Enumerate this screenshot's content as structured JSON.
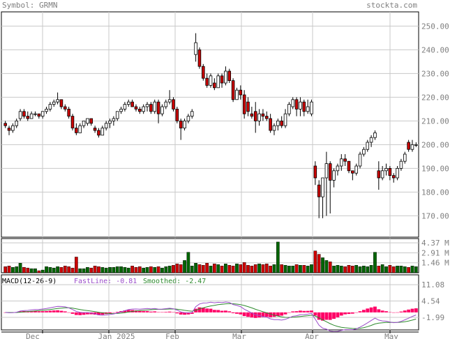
{
  "header": {
    "symbol": "Symbol: GRMN",
    "brand": "stockta.com"
  },
  "colors": {
    "grid": "#c8c8c8",
    "frame": "#000000",
    "text": "#808080",
    "up_candle": "#ffffff",
    "down_candle": "#cc0000",
    "vol_up": "#006400",
    "vol_down": "#cc0000",
    "macd_fast": "#9b4dca",
    "macd_smooth": "#2e8b2e",
    "hist": "#ff0066"
  },
  "chart_data": [
    {
      "type": "candlestick",
      "name": "price",
      "x_labels": [
        "Dec",
        "Jan 2025",
        "Feb",
        "Mar",
        "Apr",
        "May"
      ],
      "y_ticks": [
        "250.00",
        "240.00",
        "230.00",
        "220.00",
        "210.00",
        "200.00",
        "190.00",
        "180.00",
        "170.00"
      ],
      "y_tick_values": [
        250,
        240,
        230,
        220,
        210,
        200,
        190,
        180,
        170
      ],
      "ylim": [
        161,
        256
      ],
      "grid": true,
      "candles": [
        [
          209,
          210,
          207,
          208
        ],
        [
          207,
          208,
          204,
          206
        ],
        [
          206,
          209,
          205,
          208
        ],
        [
          208,
          211,
          207,
          210
        ],
        [
          211,
          215,
          210,
          214
        ],
        [
          214,
          215,
          211,
          212
        ],
        [
          212,
          214,
          210,
          211
        ],
        [
          211,
          214,
          211,
          213
        ],
        [
          213,
          214,
          212,
          213
        ],
        [
          213,
          213,
          211,
          212
        ],
        [
          212,
          214,
          211,
          214
        ],
        [
          214,
          216,
          213,
          215
        ],
        [
          215,
          218,
          214,
          217
        ],
        [
          217,
          219,
          216,
          218
        ],
        [
          218,
          222,
          217,
          219
        ],
        [
          219,
          219,
          215,
          216
        ],
        [
          216,
          217,
          214,
          215
        ],
        [
          215,
          216,
          211,
          212
        ],
        [
          212,
          213,
          206,
          207
        ],
        [
          207,
          209,
          204,
          205
        ],
        [
          205,
          209,
          205,
          208
        ],
        [
          208,
          210,
          207,
          210
        ],
        [
          209,
          211,
          208,
          211
        ],
        [
          211,
          211,
          208,
          209
        ],
        [
          207,
          208,
          205,
          206
        ],
        [
          206,
          207,
          203,
          204
        ],
        [
          204,
          208,
          204,
          207
        ],
        [
          207,
          210,
          206,
          209
        ],
        [
          209,
          211,
          207,
          210
        ],
        [
          210,
          212,
          208,
          211
        ],
        [
          211,
          214,
          210,
          214
        ],
        [
          214,
          216,
          213,
          215
        ],
        [
          215,
          218,
          214,
          217
        ],
        [
          217,
          219,
          216,
          218
        ],
        [
          218,
          219,
          216,
          216
        ],
        [
          216,
          217,
          214,
          215
        ],
        [
          215,
          216,
          213,
          214
        ],
        [
          214,
          217,
          213,
          216
        ],
        [
          216,
          218,
          214,
          217
        ],
        [
          217,
          218,
          213,
          214
        ],
        [
          214,
          219,
          213,
          218
        ],
        [
          218,
          219,
          209,
          213
        ],
        [
          213,
          217,
          212,
          216
        ],
        [
          216,
          219,
          215,
          218
        ],
        [
          218,
          223,
          217,
          219
        ],
        [
          219,
          220,
          214,
          215
        ],
        [
          215,
          216,
          209,
          210
        ],
        [
          210,
          211,
          202,
          207
        ],
        [
          207,
          211,
          206,
          210
        ],
        [
          210,
          213,
          209,
          212
        ],
        [
          212,
          215,
          211,
          214
        ],
        [
          238,
          247,
          235,
          243
        ],
        [
          240,
          241,
          232,
          233
        ],
        [
          233,
          234,
          227,
          228
        ],
        [
          228,
          230,
          224,
          225
        ],
        [
          225,
          230,
          224,
          229
        ],
        [
          226,
          228,
          223,
          224
        ],
        [
          224,
          230,
          224,
          229
        ],
        [
          229,
          230,
          224,
          226
        ],
        [
          226,
          233,
          225,
          231
        ],
        [
          231,
          232,
          226,
          227
        ],
        [
          227,
          228,
          218,
          219
        ],
        [
          219,
          224,
          219,
          223
        ],
        [
          223,
          225,
          219,
          221
        ],
        [
          221,
          223,
          211,
          213
        ],
        [
          218,
          220,
          212,
          214
        ],
        [
          213,
          216,
          211,
          212
        ],
        [
          214,
          218,
          205,
          210
        ],
        [
          210,
          215,
          208,
          213
        ],
        [
          213,
          215,
          210,
          212
        ],
        [
          212,
          214,
          210,
          211
        ],
        [
          211,
          213,
          205,
          206
        ],
        [
          206,
          209,
          204,
          208
        ],
        [
          208,
          211,
          206,
          210
        ],
        [
          210,
          212,
          207,
          208
        ],
        [
          208,
          215,
          207,
          213
        ],
        [
          213,
          218,
          212,
          217
        ],
        [
          216,
          220,
          215,
          219
        ],
        [
          219,
          220,
          212,
          215
        ],
        [
          215,
          220,
          212,
          218
        ],
        [
          218,
          219,
          212,
          214
        ],
        [
          214,
          219,
          213,
          216
        ],
        [
          213,
          219,
          212,
          218
        ],
        [
          191,
          193,
          183,
          186
        ],
        [
          183,
          185,
          169,
          178
        ],
        [
          178,
          186,
          169,
          186
        ],
        [
          186,
          197,
          170,
          192
        ],
        [
          192,
          193,
          171,
          185
        ],
        [
          185,
          190,
          182,
          189
        ],
        [
          189,
          192,
          187,
          191
        ],
        [
          191,
          196,
          189,
          194
        ],
        [
          194,
          196,
          191,
          193
        ],
        [
          193,
          193,
          188,
          189
        ],
        [
          189,
          189,
          185,
          188
        ],
        [
          188,
          192,
          187,
          191
        ],
        [
          191,
          197,
          190,
          196
        ],
        [
          196,
          199,
          195,
          198
        ],
        [
          198,
          202,
          197,
          201
        ],
        [
          201,
          204,
          199,
          203
        ],
        [
          203,
          206,
          202,
          205
        ],
        [
          189,
          193,
          181,
          186
        ],
        [
          186,
          191,
          185,
          189
        ],
        [
          189,
          192,
          187,
          190
        ],
        [
          190,
          191,
          185,
          187
        ],
        [
          187,
          188,
          184,
          186
        ],
        [
          186,
          191,
          185,
          190
        ],
        [
          190,
          194,
          189,
          193
        ],
        [
          193,
          197,
          192,
          196
        ],
        [
          201,
          202,
          197,
          198
        ],
        [
          198,
          202,
          197,
          200
        ],
        [
          200,
          201,
          199,
          200
        ]
      ]
    },
    {
      "type": "bar",
      "name": "volume",
      "y_ticks": [
        "4.37 M",
        "2.91 M",
        "1.46 M"
      ],
      "y_tick_values": [
        4.37,
        2.91,
        1.46
      ],
      "ylim": [
        0,
        5.0
      ],
      "grid": true,
      "values": [
        0.9,
        1.0,
        0.8,
        0.9,
        1.4,
        0.8,
        0.7,
        0.6,
        0.6,
        0.3,
        0.4,
        0.9,
        0.8,
        0.7,
        0.9,
        0.8,
        1.0,
        0.9,
        0.7,
        2.3,
        0.6,
        0.6,
        0.8,
        0.7,
        1.0,
        0.9,
        0.8,
        0.7,
        0.8,
        0.8,
        0.9,
        0.9,
        0.8,
        0.7,
        1.0,
        0.8,
        0.9,
        0.7,
        0.8,
        0.9,
        0.8,
        0.9,
        0.7,
        0.9,
        1.0,
        1.1,
        1.3,
        1.2,
        1.8,
        3.0,
        1.0,
        1.4,
        1.2,
        1.1,
        1.4,
        1.0,
        1.3,
        1.2,
        1.0,
        1.3,
        1.1,
        1.0,
        1.3,
        1.2,
        1.5,
        1.1,
        1.0,
        1.2,
        1.3,
        1.2,
        1.3,
        1.0,
        1.2,
        4.5,
        1.2,
        1.1,
        1.0,
        1.0,
        1.2,
        1.1,
        1.1,
        1.0,
        1.2,
        3.2,
        2.7,
        2.2,
        1.8,
        1.6,
        1.0,
        1.1,
        1.0,
        0.9,
        1.1,
        1.0,
        1.1,
        0.9,
        1.0,
        0.9,
        1.1,
        3.0,
        1.0,
        1.2,
        0.9,
        1.1,
        0.9,
        1.0,
        1.0,
        0.9,
        0.8,
        1.0,
        0.9
      ]
    },
    {
      "type": "line",
      "name": "macd",
      "title": "MACD(12-26-9)",
      "legend": [
        {
          "label": "FastLine: -0.81"
        },
        {
          "label": "Smoothed: -2.47"
        }
      ],
      "y_ticks": [
        "11.08",
        "4.54",
        "-1.99"
      ],
      "y_tick_values": [
        11.08,
        4.54,
        -1.99
      ],
      "ylim": [
        -7,
        15
      ],
      "grid": true
    }
  ]
}
